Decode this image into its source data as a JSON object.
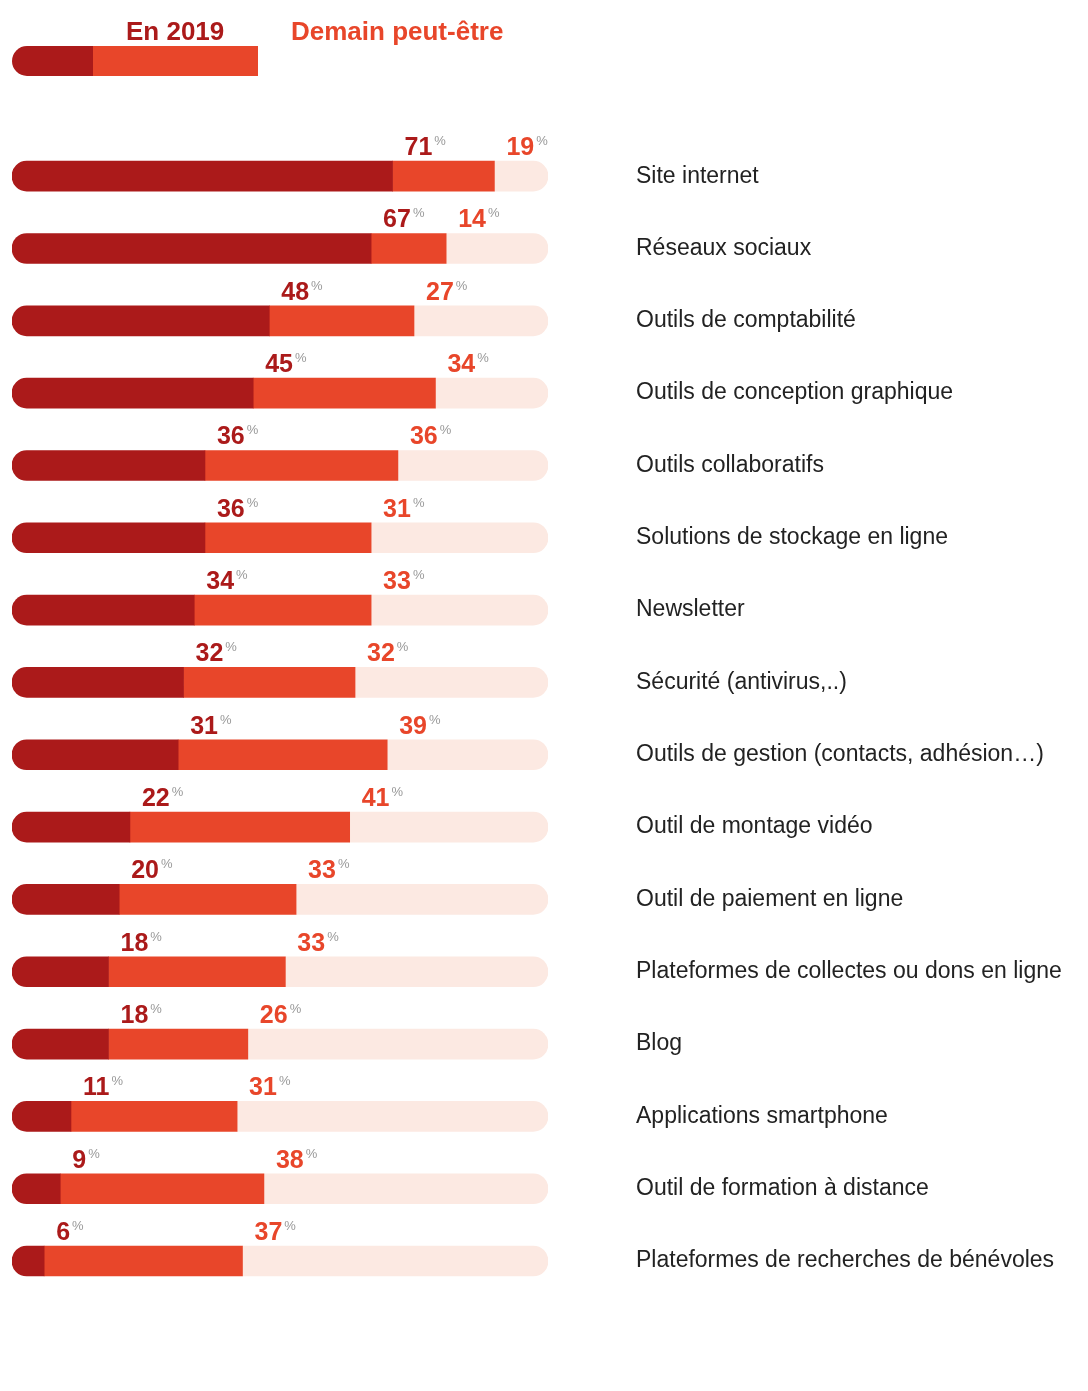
{
  "chart_data": {
    "type": "bar",
    "orientation": "horizontal",
    "stacked": true,
    "legend": "top",
    "grid": false,
    "tick_labels": "y",
    "xlim": [
      0,
      100
    ],
    "categories": [
      "Site internet",
      "Réseaux sociaux",
      "Outils de comptabilité",
      "Outils de conception graphique",
      "Outils collaboratifs",
      "Solutions de stockage en ligne",
      "Newsletter",
      "Sécurité (antivirus,..)",
      "Outils de gestion (contacts, adhésion…)",
      "Outil de montage vidéo",
      "Outil de paiement en ligne",
      "Plateformes de collectes ou dons en ligne",
      "Blog",
      "Applications smartphone",
      "Outil de formation à distance",
      "Plateformes de recherches de bénévoles"
    ],
    "series": [
      {
        "name": "En 2019",
        "color": "#ab1a1a",
        "values": [
          71,
          67,
          48,
          45,
          36,
          36,
          34,
          32,
          31,
          22,
          20,
          18,
          18,
          11,
          9,
          6
        ],
        "value_labels": [
          "71%",
          "67%",
          "48%",
          "45%",
          "36%",
          "36%",
          "34%",
          "32%",
          "31%",
          "22%",
          "20%",
          "18%",
          "18%",
          "11%",
          "9%",
          "6%"
        ]
      },
      {
        "name": "Demain peut-être",
        "color": "#e8462a",
        "values": [
          19,
          14,
          27,
          34,
          36,
          31,
          33,
          32,
          39,
          41,
          33,
          33,
          26,
          31,
          38,
          37
        ],
        "value_labels": [
          "19%",
          "14%",
          "27%",
          "34%",
          "36%",
          "31%",
          "33%",
          "32%",
          "39%",
          "41%",
          "33%",
          "33%",
          "26%",
          "31%",
          "38%",
          "37%"
        ]
      },
      {
        "color": "#fce9e2",
        "values": [
          10,
          19,
          25,
          21,
          28,
          33,
          33,
          36,
          30,
          37,
          47,
          49,
          56,
          58,
          53,
          57
        ]
      }
    ]
  }
}
